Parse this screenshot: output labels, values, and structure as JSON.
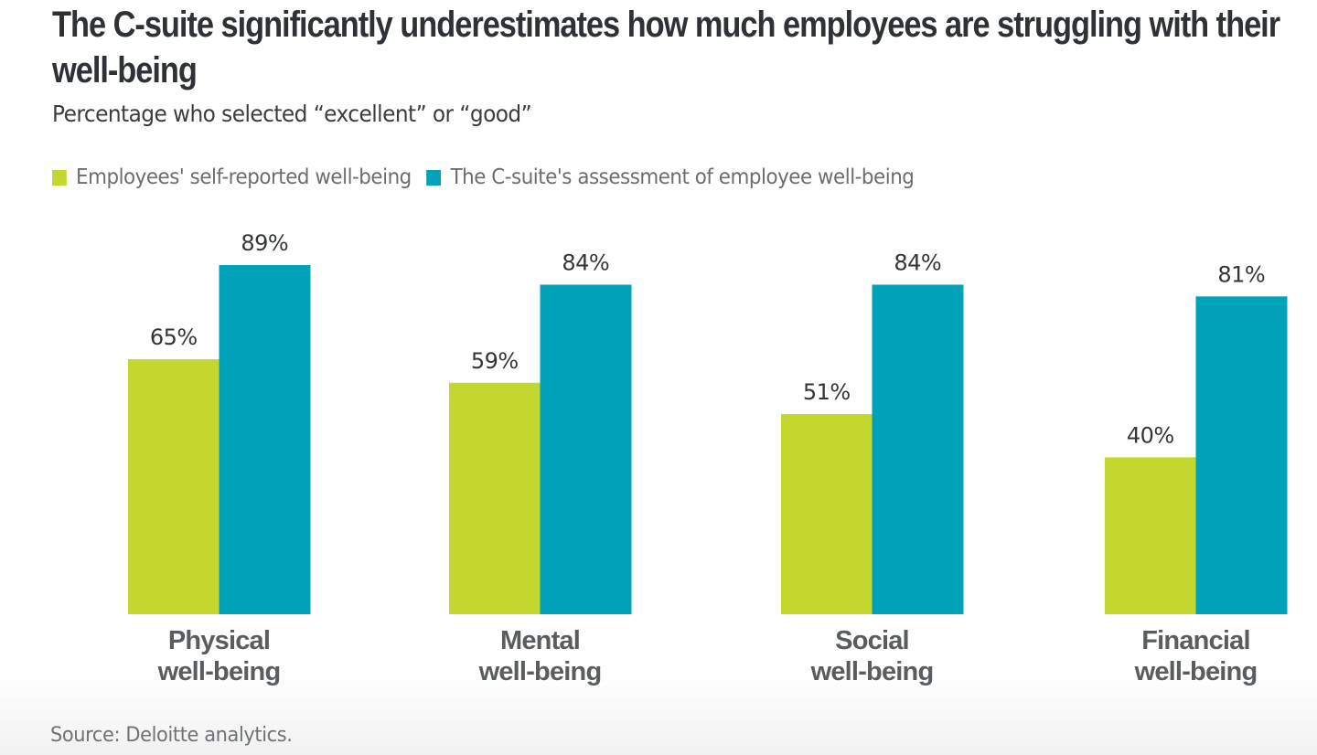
{
  "chart_data": {
    "type": "bar",
    "title": "The C-suite significantly underestimates how much employees are struggling with their well-being",
    "subtitle": "Percentage who selected “excellent” or “good”",
    "categories": [
      [
        "Physical",
        "well-being"
      ],
      [
        "Mental",
        "well-being"
      ],
      [
        "Social",
        "well-being"
      ],
      [
        "Financial",
        "well-being"
      ]
    ],
    "series": [
      {
        "name": "Employees' self-reported well-being",
        "color": "#c4d72e",
        "values": [
          65,
          59,
          51,
          40
        ]
      },
      {
        "name": "The C-suite's assessment of employee well-being",
        "color": "#00a2b8",
        "values": [
          89,
          84,
          84,
          81
        ]
      }
    ],
    "value_suffix": "%",
    "xlabel": "",
    "ylabel": "",
    "ylim": [
      0,
      100
    ],
    "grid": false,
    "legend": "top-left",
    "source": "Source: Deloitte analytics."
  }
}
